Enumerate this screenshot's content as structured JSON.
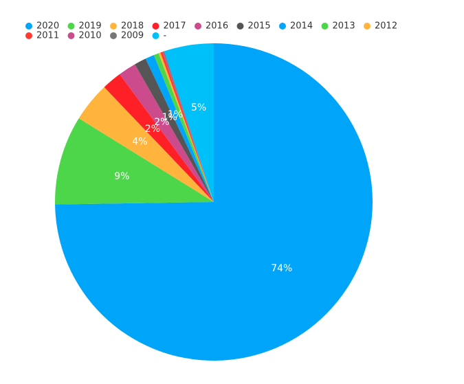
{
  "chart_data": {
    "type": "pie",
    "title": "",
    "start_angle_deg": 0,
    "direction": "clockwise",
    "legend_position": "top-left",
    "slices": [
      {
        "label": "2020",
        "value": 74,
        "display": "74%",
        "color": "#00a5fa"
      },
      {
        "label": "2019",
        "value": 9,
        "display": "9%",
        "color": "#4dd64a"
      },
      {
        "label": "2018",
        "value": 4,
        "display": "4%",
        "color": "#ffb53d"
      },
      {
        "label": "2017",
        "value": 2,
        "display": "2%",
        "color": "#ff1f26"
      },
      {
        "label": "2016",
        "value": 1.8,
        "display": "2%",
        "color": "#cc4b8c"
      },
      {
        "label": "2015",
        "value": 1.2,
        "display": "1%",
        "color": "#555555"
      },
      {
        "label": "2014",
        "value": 0.9,
        "display": "1%",
        "color": "#00a5fa"
      },
      {
        "label": "2013",
        "value": 0.5,
        "display": "",
        "color": "#4dd64a"
      },
      {
        "label": "2012",
        "value": 0.2,
        "display": "",
        "color": "#ffb53d"
      },
      {
        "label": "2011",
        "value": 0.2,
        "display": "",
        "color": "#ff3b30"
      },
      {
        "label": "2010",
        "value": 0.1,
        "display": "",
        "color": "#cc4b8c"
      },
      {
        "label": "2009",
        "value": 0.1,
        "display": "",
        "color": "#777777"
      },
      {
        "label": "-",
        "value": 5,
        "display": "5%",
        "color": "#00c0fa"
      }
    ]
  }
}
